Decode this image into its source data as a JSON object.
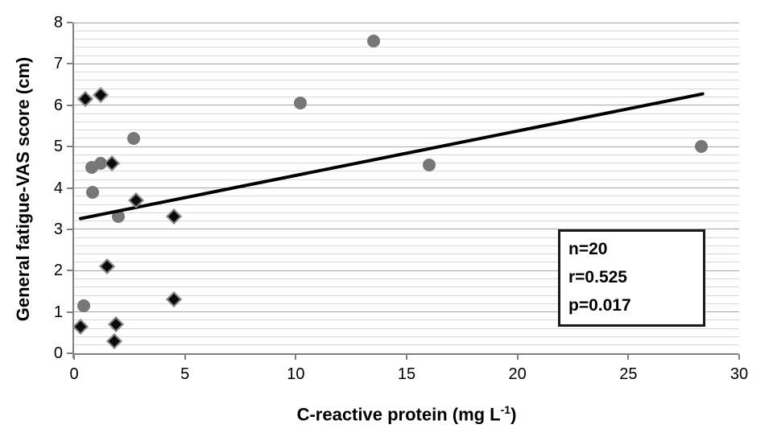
{
  "chart_data": {
    "type": "scatter",
    "title": "",
    "ylabel": "General fatigue-VAS score (cm)",
    "xlabel_main": "C-reactive protein (mg L",
    "xlabel_sup": "-1",
    "xlabel_close": ")",
    "xlim": [
      0,
      30
    ],
    "ylim": [
      0,
      8
    ],
    "x_ticks": [
      0,
      5,
      10,
      15,
      20,
      25,
      30
    ],
    "y_ticks": [
      0,
      1,
      2,
      3,
      4,
      5,
      6,
      7,
      8
    ],
    "minor_grid_step": 0.2,
    "grid": "horizontal minor and major gridlines, no vertical gridlines",
    "legend_position": "none",
    "series": [
      {
        "name": "gray-circle-group",
        "marker": "circle",
        "color": "#777777",
        "points": [
          [
            0.45,
            1.15
          ],
          [
            0.8,
            4.5
          ],
          [
            0.85,
            3.9
          ],
          [
            1.2,
            4.6
          ],
          [
            2.0,
            3.3
          ],
          [
            2.7,
            5.2
          ],
          [
            10.2,
            6.05
          ],
          [
            13.5,
            7.55
          ],
          [
            16.0,
            4.55
          ],
          [
            28.3,
            5.0
          ]
        ]
      },
      {
        "name": "black-diamond-group",
        "marker": "diamond",
        "color": "#0a0a0a",
        "outline": "#8a8a8a",
        "points": [
          [
            0.3,
            0.65
          ],
          [
            0.5,
            6.15
          ],
          [
            1.2,
            6.25
          ],
          [
            1.5,
            2.1
          ],
          [
            1.7,
            4.6
          ],
          [
            1.8,
            0.3
          ],
          [
            1.9,
            0.7
          ],
          [
            2.8,
            3.7
          ],
          [
            4.5,
            3.3
          ],
          [
            4.5,
            1.3
          ]
        ]
      }
    ],
    "trendline": {
      "x1": 0.2,
      "y1": 3.25,
      "x2": 28.4,
      "y2": 6.28,
      "color": "#000000"
    },
    "annotation": {
      "lines": [
        "n=20",
        "r=0.525",
        "p=0.017"
      ]
    }
  },
  "colors": {
    "background": "#ffffff",
    "axis": "#808080",
    "grid_minor": "#d9d9d9",
    "grid_major": "#a6a6a6",
    "text": "#000000"
  }
}
